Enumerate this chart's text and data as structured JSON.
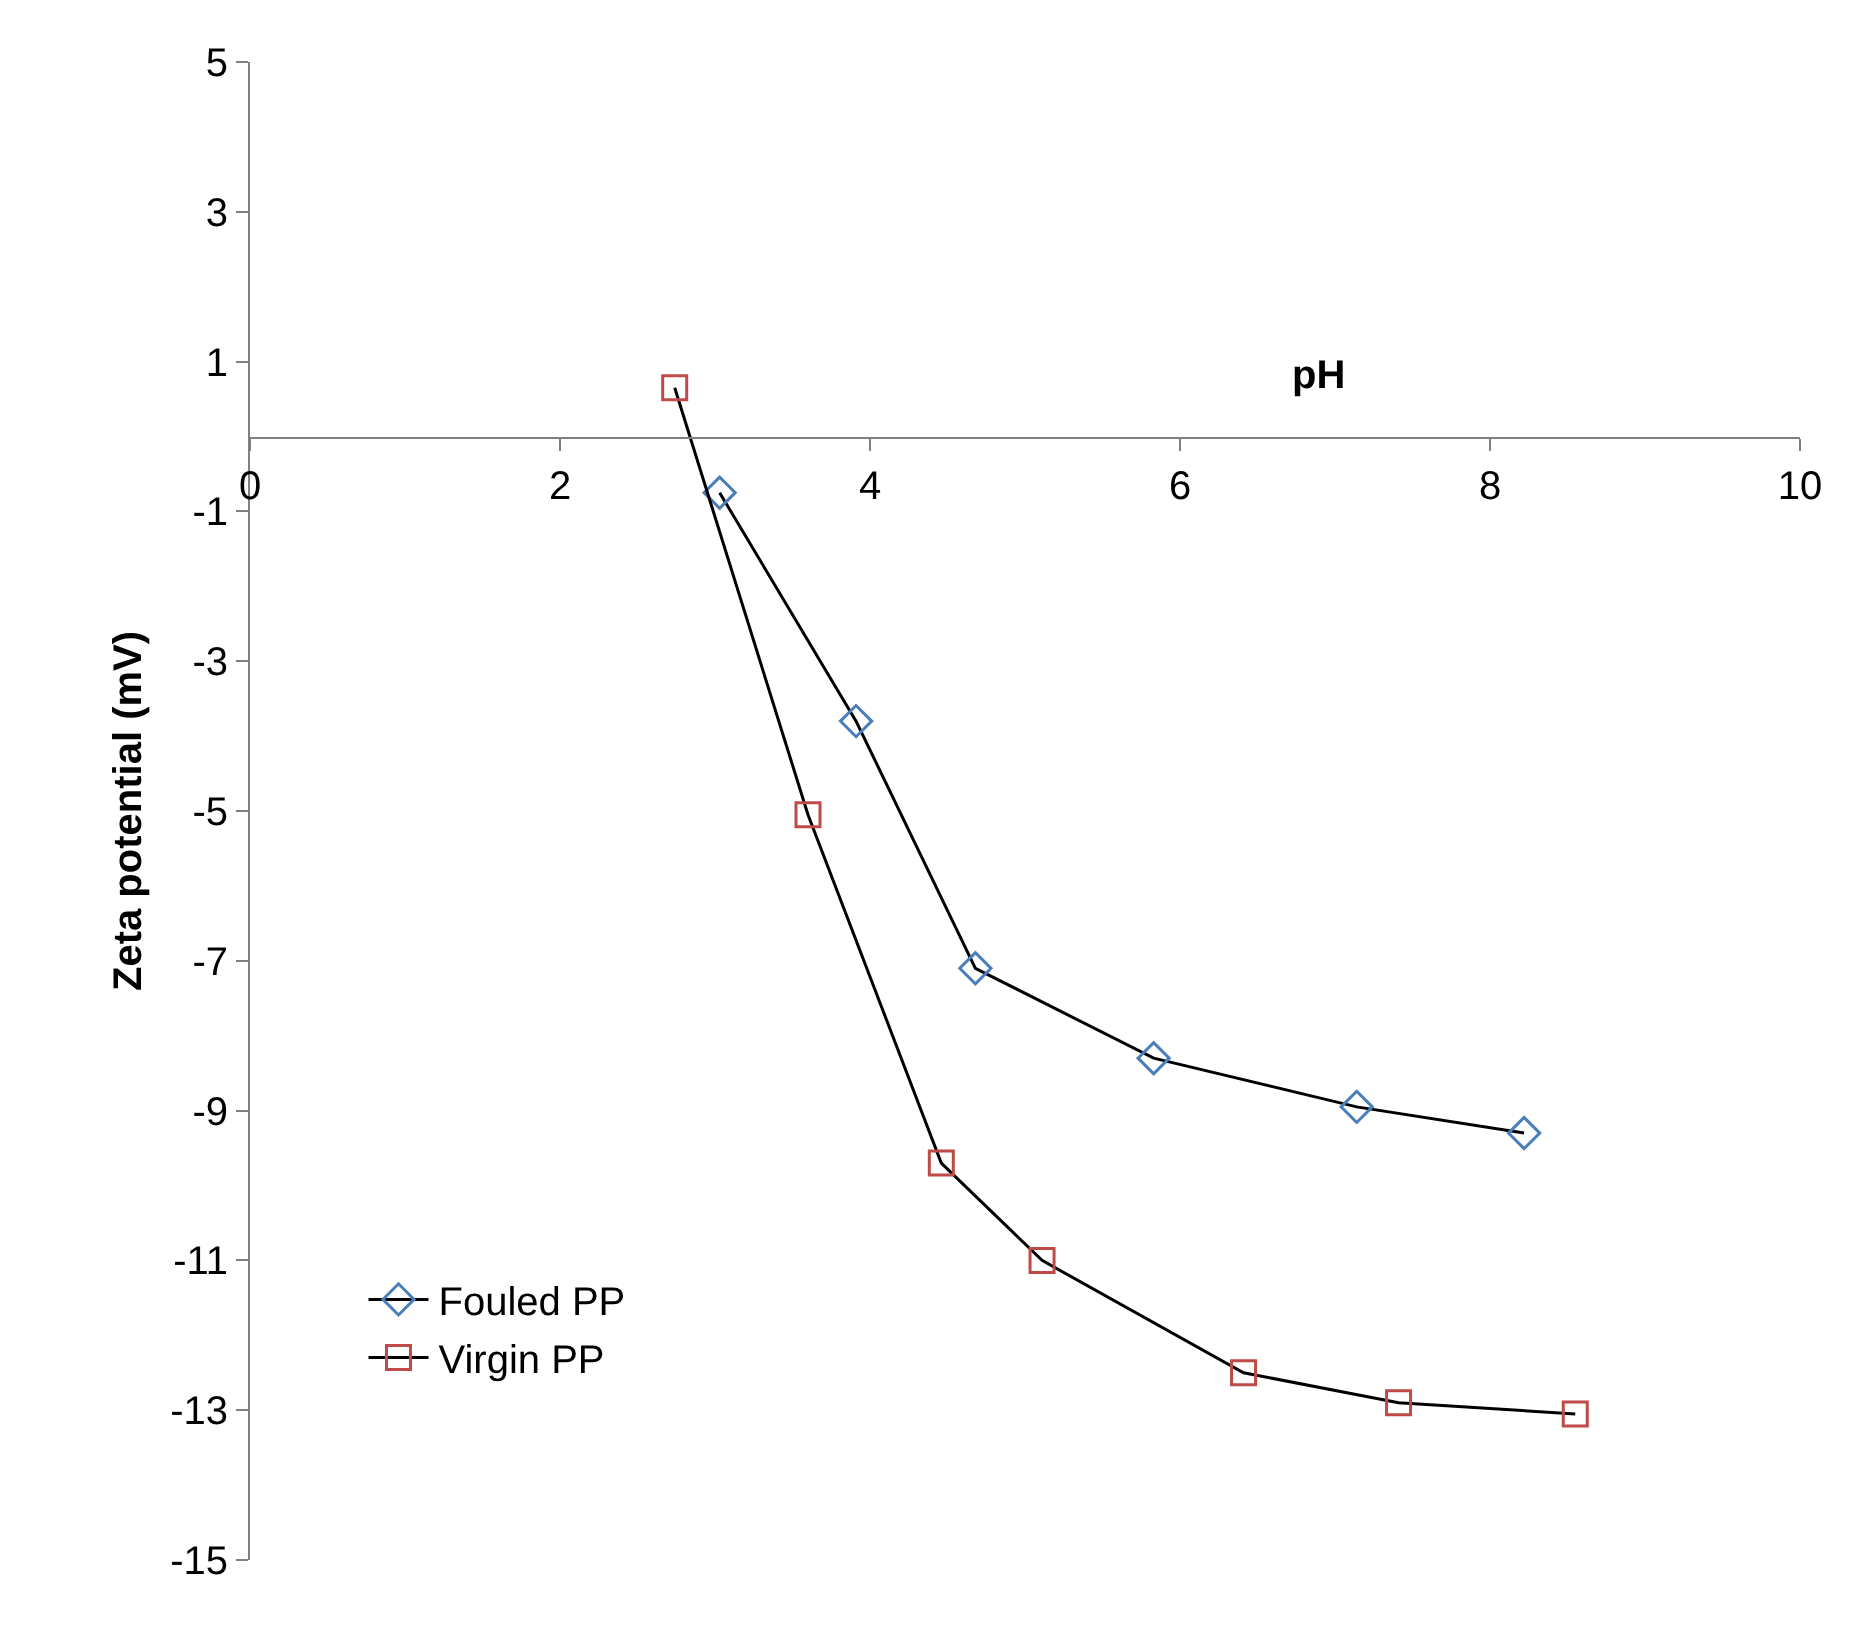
{
  "chart_data": {
    "type": "line",
    "xlabel": "pH",
    "ylabel": "Zeta potential (mV)",
    "xlim": [
      0,
      10
    ],
    "xticks": [
      0,
      2,
      4,
      6,
      8,
      10
    ],
    "ylim": [
      -15,
      5
    ],
    "yticks": [
      -15,
      -13,
      -11,
      -9,
      -7,
      -5,
      -3,
      -1,
      1,
      3,
      5
    ],
    "legend": "bottom left",
    "series": [
      {
        "name": "Fouled PP",
        "color": "#4a7ebb",
        "marker": "diamond",
        "x": [
          3.03,
          3.91,
          4.68,
          5.83,
          7.14,
          8.22
        ],
        "values": [
          -0.75,
          -3.8,
          -7.1,
          -8.3,
          -8.95,
          -9.3
        ]
      },
      {
        "name": "Virgin PP",
        "color": "#be4b48",
        "marker": "square",
        "x": [
          2.74,
          3.6,
          4.46,
          5.11,
          6.41,
          7.41,
          8.55
        ],
        "values": [
          0.65,
          -5.05,
          -9.7,
          -11.0,
          -12.5,
          -12.9,
          -13.05
        ]
      }
    ]
  }
}
